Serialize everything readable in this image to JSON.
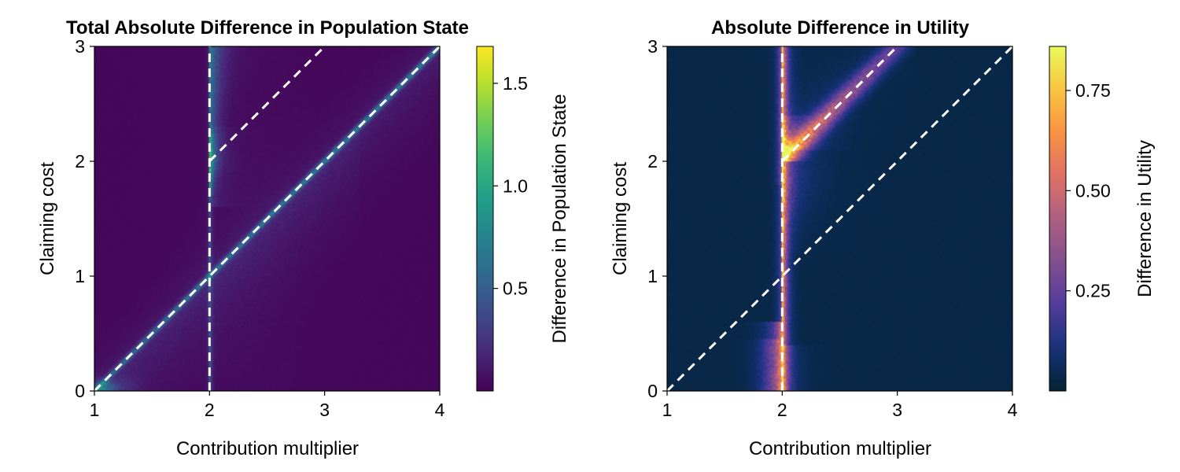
{
  "chart_data": [
    {
      "type": "heatmap",
      "title": "Total Absolute Difference in Population State",
      "xlabel": "Contribution multiplier",
      "ylabel": "Claiming cost",
      "xlim": [
        1,
        4
      ],
      "ylim": [
        0,
        3
      ],
      "xticks": [
        1,
        2,
        3,
        4
      ],
      "yticks": [
        0,
        1,
        2,
        3
      ],
      "colormap": "viridis",
      "colorbar": {
        "label": "Difference in Population State",
        "range": [
          0.0,
          1.68
        ],
        "ticks": [
          0.5,
          1.0,
          1.5
        ],
        "tick_labels": [
          "0.5",
          "1.0",
          "1.5"
        ]
      },
      "reference_lines": [
        {
          "style": "dashed",
          "color": "#ffffff",
          "x": [
            2,
            2
          ],
          "y": [
            0,
            3
          ]
        },
        {
          "style": "dashed",
          "color": "#ffffff",
          "x": [
            1,
            4
          ],
          "y": [
            0,
            3
          ]
        },
        {
          "style": "dashed",
          "color": "#ffffff",
          "x": [
            2,
            3
          ],
          "y": [
            2,
            3
          ]
        }
      ]
    },
    {
      "type": "heatmap",
      "title": "Absolute Difference in Utility",
      "xlabel": "Contribution multiplier",
      "ylabel": "Claiming cost",
      "xlim": [
        1,
        4
      ],
      "ylim": [
        0,
        3
      ],
      "xticks": [
        1,
        2,
        3,
        4
      ],
      "yticks": [
        0,
        1,
        2,
        3
      ],
      "colormap": "thermal",
      "colorbar": {
        "label": "Difference in Utility",
        "range": [
          0.0,
          0.86
        ],
        "ticks": [
          0.25,
          0.5,
          0.75
        ],
        "tick_labels": [
          "0.25",
          "0.50",
          "0.75"
        ]
      },
      "reference_lines": [
        {
          "style": "dashed",
          "color": "#ffffff",
          "x": [
            2,
            2
          ],
          "y": [
            0,
            3
          ]
        },
        {
          "style": "dashed",
          "color": "#ffffff",
          "x": [
            1,
            4
          ],
          "y": [
            0,
            3
          ]
        },
        {
          "style": "dashed",
          "color": "#ffffff",
          "x": [
            2,
            3
          ],
          "y": [
            2,
            3
          ]
        }
      ]
    }
  ]
}
